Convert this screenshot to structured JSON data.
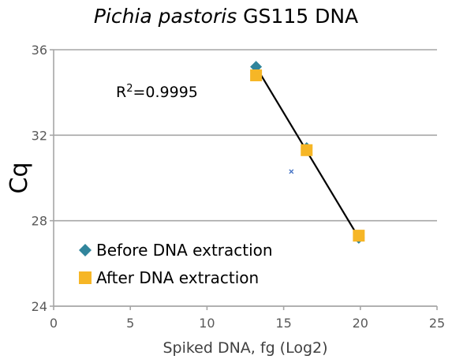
{
  "chart_data": {
    "type": "scatter",
    "title_italic": "Pichia pastoris",
    "title_rest": " GS115 DNA",
    "xlabel": "Spiked DNA, fg (Log2)",
    "ylabel": "Cq",
    "xlim": [
      0,
      25
    ],
    "ylim": [
      24,
      36
    ],
    "x_ticks": [
      "0",
      "5",
      "10",
      "15",
      "20",
      "25"
    ],
    "y_ticks": [
      "24",
      "28",
      "32",
      "36"
    ],
    "grid": "horizontal",
    "annotation": {
      "prefix": "R",
      "sup": "2",
      "suffix": "=0.9995"
    },
    "series": [
      {
        "name": "Before DNA extraction",
        "marker": "diamond",
        "color": "#31859c",
        "points": [
          [
            13.2,
            35.2
          ],
          [
            16.5,
            31.4
          ],
          [
            19.9,
            27.2
          ]
        ]
      },
      {
        "name": "After DNA extraction",
        "marker": "square",
        "color": "#f6b626",
        "points": [
          [
            13.2,
            34.8
          ],
          [
            16.5,
            31.3
          ],
          [
            19.9,
            27.3
          ]
        ]
      },
      {
        "name": "",
        "marker": "x",
        "color": "#4472c4",
        "points": [
          [
            15.5,
            30.3
          ]
        ]
      }
    ],
    "trendline": {
      "from": [
        13.2,
        35.2
      ],
      "to": [
        19.9,
        27.2
      ],
      "color": "#000000"
    }
  }
}
